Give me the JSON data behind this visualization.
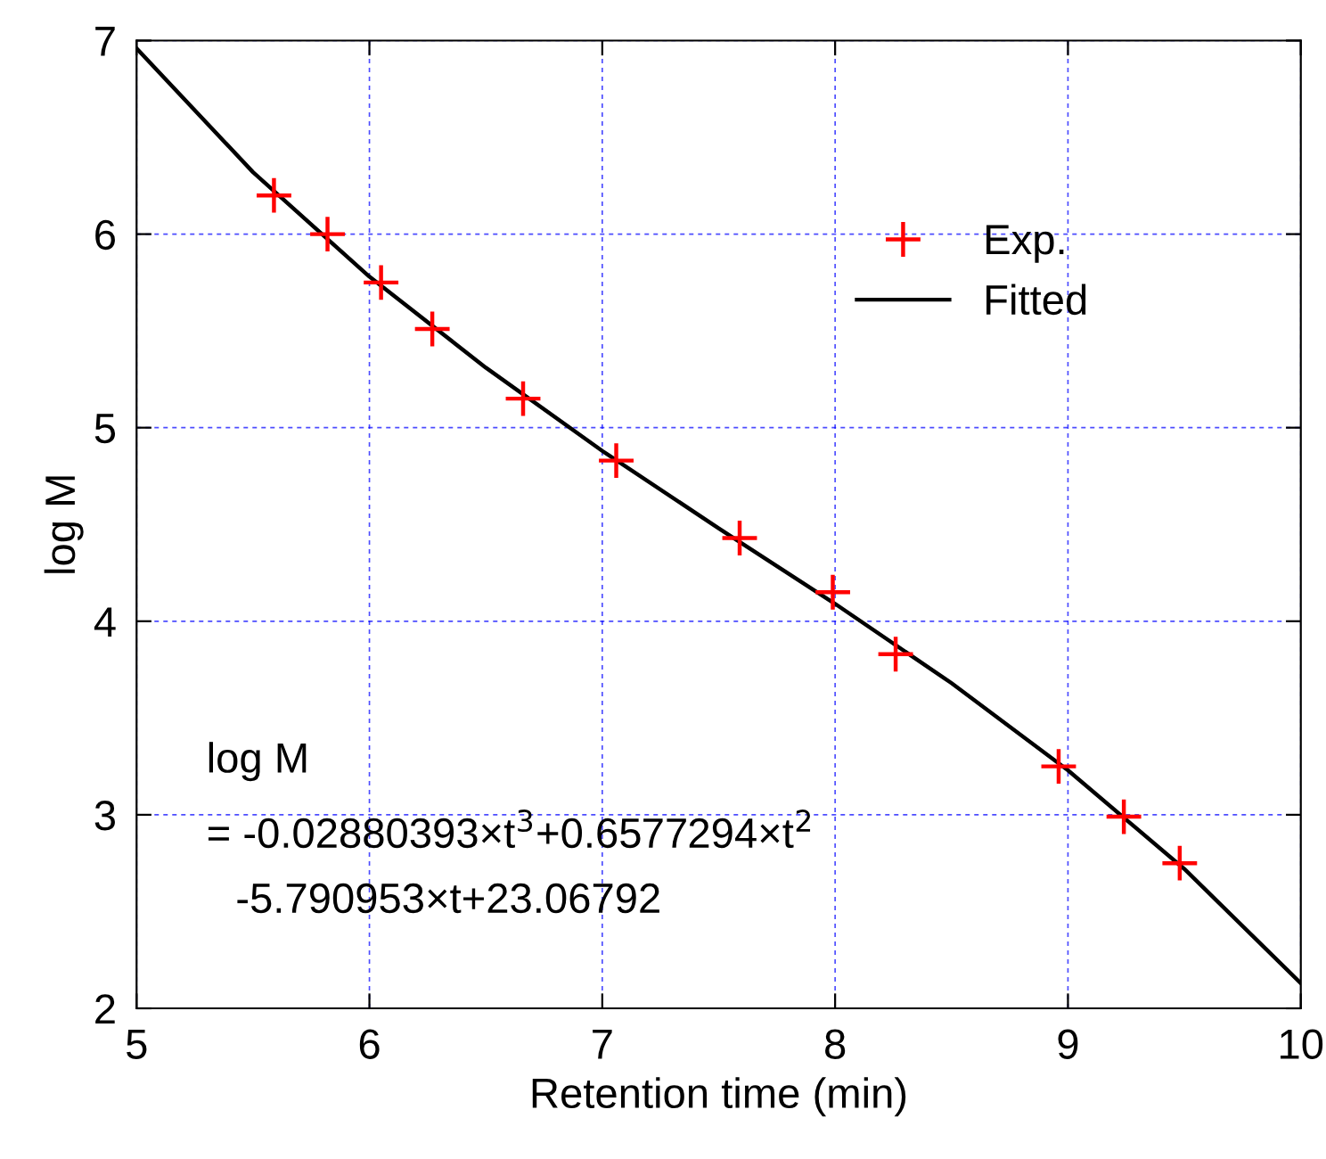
{
  "chart_data": {
    "type": "scatter",
    "xlabel": "Retention time (min)",
    "ylabel": "log M",
    "xlim": [
      5,
      10
    ],
    "ylim": [
      2,
      7
    ],
    "xticks": [
      5,
      6,
      7,
      8,
      9,
      10
    ],
    "yticks": [
      2,
      3,
      4,
      5,
      6,
      7
    ],
    "grid": true,
    "legend": "top right",
    "series": [
      {
        "name": "Exp.",
        "marker": "cross",
        "color": "#ff0000",
        "x": [
          5.59,
          5.82,
          6.05,
          6.27,
          6.66,
          7.06,
          7.59,
          7.99,
          8.26,
          8.96,
          9.24,
          9.48
        ],
        "values": [
          6.2,
          6.0,
          5.75,
          5.51,
          5.15,
          4.83,
          4.43,
          4.15,
          3.83,
          3.25,
          2.99,
          2.75
        ]
      },
      {
        "name": "Fitted",
        "type": "line",
        "marker": "none",
        "line_style": "solid",
        "color": "#000000",
        "x": [
          5,
          5.5,
          6,
          6.5,
          7,
          7.5,
          8,
          8.5,
          9,
          9.5,
          10
        ],
        "values": [
          6.96,
          6.32,
          5.78,
          5.31,
          4.88,
          4.48,
          4.09,
          3.68,
          3.23,
          2.72,
          2.13
        ]
      }
    ],
    "annotations": [
      "log M",
      "= -0.02880393×t$^{3}$+0.6577294×t$^{2}$",
      "-5.790953×t+23.06792"
    ]
  }
}
